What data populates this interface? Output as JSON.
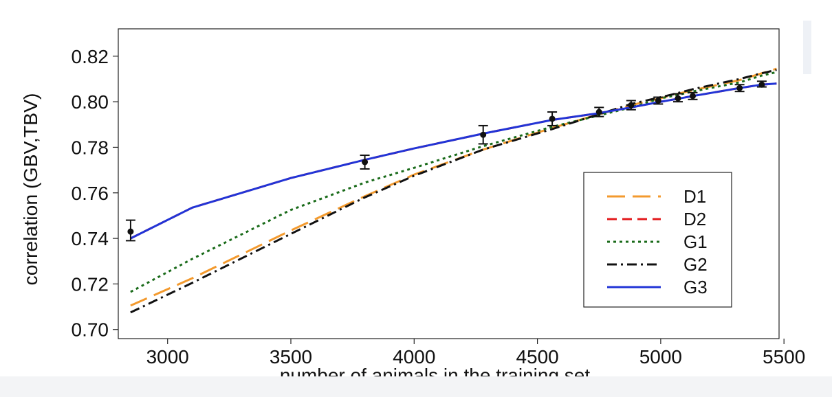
{
  "chart_data": {
    "type": "line",
    "title": "",
    "xlabel": "number of animals in the training set",
    "ylabel": "correlation (GBV,TBV)",
    "xlim": [
      2800,
      5480
    ],
    "ylim": [
      0.696,
      0.832
    ],
    "xticks": [
      3000,
      3500,
      4000,
      4500,
      5000,
      5500
    ],
    "xtick_labels": [
      "3000",
      "3500",
      "4000",
      "4500",
      "5000",
      "5500"
    ],
    "yticks": [
      0.7,
      0.72,
      0.74,
      0.76,
      0.78,
      0.8,
      0.82
    ],
    "ytick_labels": [
      "0.70",
      "0.72",
      "0.74",
      "0.76",
      "0.78",
      "0.80",
      "0.82"
    ],
    "grid": false,
    "legend_position": "bottom-right",
    "x": [
      2850,
      3100,
      3500,
      3800,
      4000,
      4280,
      4560,
      4750,
      4880,
      5000,
      5070,
      5130,
      5320,
      5410,
      5470
    ],
    "series": [
      {
        "name": "D1",
        "color": "#f39a2e",
        "dash": "long-dash",
        "values": [
          0.7105,
          0.7225,
          0.7435,
          0.7585,
          0.768,
          0.779,
          0.7885,
          0.7945,
          0.7985,
          0.8015,
          0.8035,
          0.805,
          0.8095,
          0.8125,
          0.8145
        ]
      },
      {
        "name": "D2",
        "color": "#e31a1c",
        "dash": "dash",
        "values": [
          0.74,
          0.7535,
          0.7665,
          0.7745,
          0.7795,
          0.786,
          0.792,
          0.795,
          0.7975,
          0.8,
          0.8013,
          0.8025,
          0.806,
          0.8075,
          0.808
        ]
      },
      {
        "name": "G1",
        "color": "#1a6b1a",
        "dash": "dot",
        "values": [
          0.7165,
          0.731,
          0.7525,
          0.7645,
          0.771,
          0.7805,
          0.789,
          0.794,
          0.7975,
          0.8015,
          0.803,
          0.8045,
          0.8085,
          0.8115,
          0.813
        ]
      },
      {
        "name": "G2",
        "color": "#111111",
        "dash": "dash-dot",
        "values": [
          0.7075,
          0.7205,
          0.742,
          0.758,
          0.7675,
          0.779,
          0.788,
          0.7945,
          0.799,
          0.802,
          0.8038,
          0.8055,
          0.81,
          0.8125,
          0.814
        ]
      },
      {
        "name": "G3",
        "color": "#2234d6",
        "dash": "solid",
        "values": [
          0.74,
          0.7535,
          0.7665,
          0.7745,
          0.7795,
          0.786,
          0.792,
          0.795,
          0.7975,
          0.8,
          0.8013,
          0.8025,
          0.806,
          0.8075,
          0.808
        ]
      }
    ],
    "error_points": [
      {
        "x": 2850,
        "y": 0.743,
        "low": 0.739,
        "high": 0.748
      },
      {
        "x": 3800,
        "y": 0.7735,
        "low": 0.7705,
        "high": 0.7765
      },
      {
        "x": 4280,
        "y": 0.7855,
        "low": 0.7815,
        "high": 0.7895
      },
      {
        "x": 4560,
        "y": 0.7925,
        "low": 0.7895,
        "high": 0.7955
      },
      {
        "x": 4750,
        "y": 0.7955,
        "low": 0.7935,
        "high": 0.7975
      },
      {
        "x": 4880,
        "y": 0.7985,
        "low": 0.7965,
        "high": 0.8005
      },
      {
        "x": 4990,
        "y": 0.8005,
        "low": 0.799,
        "high": 0.802
      },
      {
        "x": 5070,
        "y": 0.8015,
        "low": 0.8,
        "high": 0.8035
      },
      {
        "x": 5130,
        "y": 0.8025,
        "low": 0.801,
        "high": 0.804
      },
      {
        "x": 5320,
        "y": 0.806,
        "low": 0.8045,
        "high": 0.8075
      },
      {
        "x": 5410,
        "y": 0.8075,
        "low": 0.8065,
        "high": 0.809
      }
    ]
  }
}
